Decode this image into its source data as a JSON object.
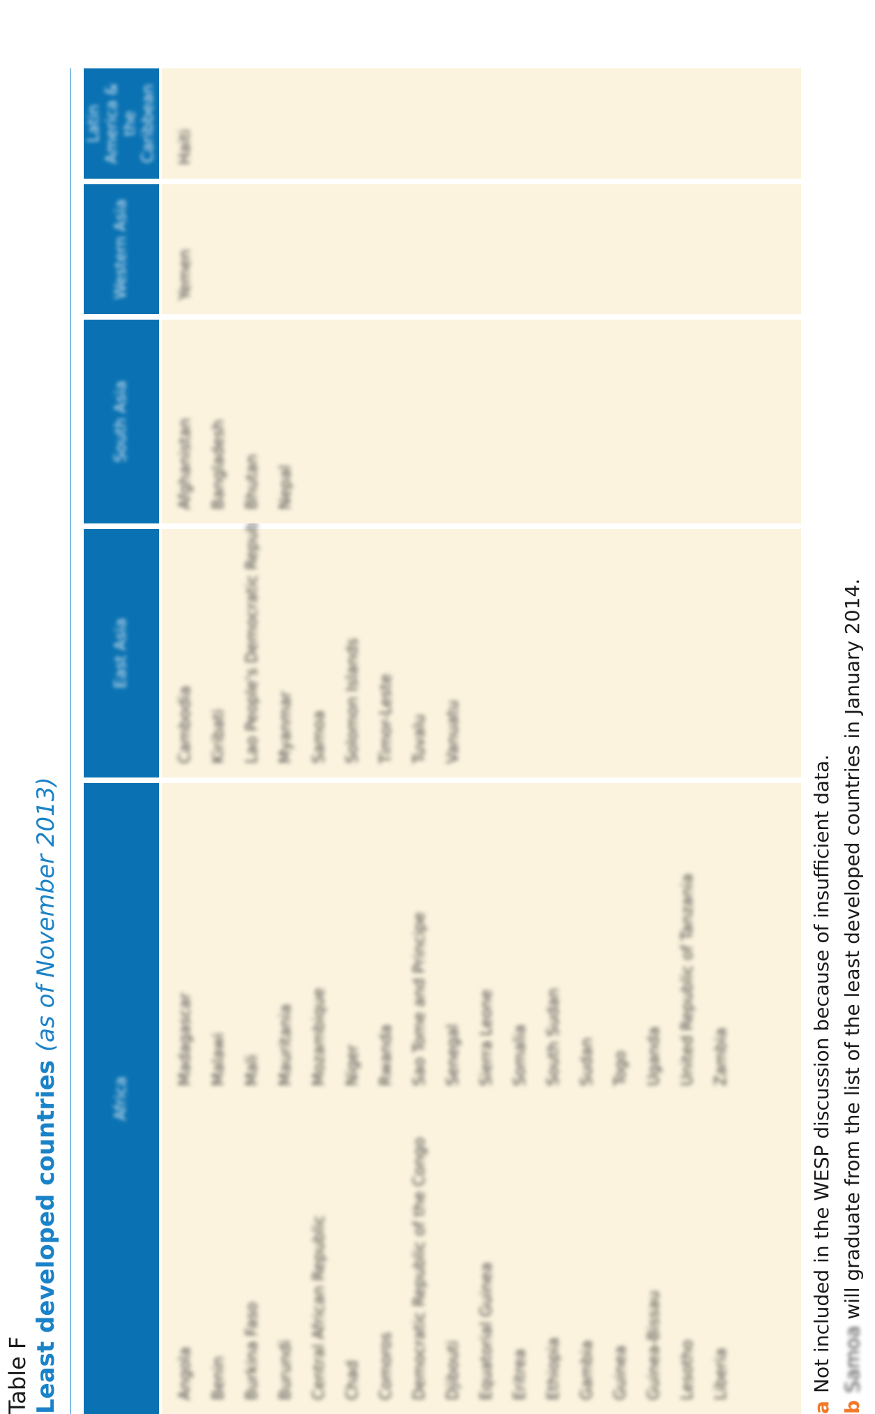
{
  "header": {
    "label": "Table F",
    "title": "Least developed countries",
    "subtitle": "(as of November 2013)"
  },
  "columns": [
    {
      "heading": "Africa",
      "items_left": [
        "Angola",
        "Benin",
        "Burkina Faso",
        "Burundi",
        "Central African Republic",
        "Chad",
        "Comoros",
        "Democratic Republic of the Congo",
        "Djibouti",
        "Equatorial Guinea",
        "Eritrea",
        "Ethiopia",
        "Gambia",
        "Guinea",
        "Guinea-Bissau",
        "Lesotho",
        "Liberia"
      ],
      "items_right": [
        "Madagascar",
        "Malawi",
        "Mali",
        "Mauritania",
        "Mozambique",
        "Niger",
        "Rwanda",
        "Sao Tome and Principe",
        "Senegal",
        "Sierra Leone",
        "Somalia",
        "South Sudan",
        "Sudan",
        "Togo",
        "Uganda",
        "United Republic of Tanzania",
        "Zambia"
      ]
    },
    {
      "heading": "East Asia",
      "items": [
        "Cambodia",
        "Kiribati",
        "Lao People's Democratic Republic",
        "Myanmar",
        "Samoa",
        "Solomon Islands",
        "Timor-Leste",
        "Tuvalu",
        "Vanuatu"
      ]
    },
    {
      "heading": "South Asia",
      "items": [
        "Afghanistan",
        "Bangladesh",
        "Bhutan",
        "Nepal"
      ]
    },
    {
      "heading": "Western Asia",
      "items": [
        "Yemen"
      ]
    },
    {
      "heading": "Latin America & the Caribbean",
      "items": [
        "Haiti"
      ]
    }
  ],
  "notes": {
    "a_key": "a",
    "a_text": "Not included in the WESP discussion because of insufficient data.",
    "b_key": "b",
    "b_country": "Samoa",
    "b_text": " will graduate from the list of the least developed countries in January 2014."
  },
  "colors": {
    "header_blue": "#0a72b2",
    "title_blue": "#1a82c8",
    "body_cream": "#fbf3de",
    "note_orange": "#f07a2a"
  }
}
